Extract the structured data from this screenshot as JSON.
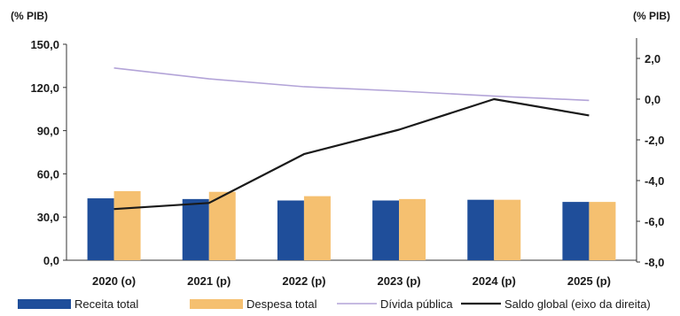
{
  "chart_data": {
    "type": "bar",
    "categories": [
      "2020 (o)",
      "2021 (p)",
      "2022 (p)",
      "2023 (p)",
      "2024 (p)",
      "2025 (p)"
    ],
    "left_axis": {
      "unit": "(% PIB)",
      "ylim": [
        0,
        150
      ],
      "ticks": [
        "0,0",
        "30,0",
        "60,0",
        "90,0",
        "120,0",
        "150,0"
      ],
      "tick_values": [
        0,
        30,
        60,
        90,
        120,
        150
      ]
    },
    "right_axis": {
      "unit": "(% PIB)",
      "ylim": [
        -8,
        3
      ],
      "ticks": [
        "-8,0",
        "-6,0",
        "-4,0",
        "-2,0",
        "0,0",
        "2,0"
      ],
      "tick_values": [
        -8,
        -6,
        -4,
        -2,
        0,
        2
      ]
    },
    "series": [
      {
        "name": "Receita total",
        "kind": "bar",
        "axis": "left",
        "color": "#1f4e9a",
        "values": [
          43,
          42.5,
          41.5,
          41.5,
          42,
          40.5
        ]
      },
      {
        "name": "Despesa total",
        "kind": "bar",
        "axis": "left",
        "color": "#f5c070",
        "values": [
          48,
          47.5,
          44.5,
          42.5,
          42,
          40.5
        ]
      },
      {
        "name": "Dívida pública",
        "kind": "line",
        "axis": "left",
        "color": "#b3a4d8",
        "values": [
          133.5,
          126,
          120.5,
          117.5,
          114,
          111
        ]
      },
      {
        "name": "Saldo global (eixo da direita)",
        "kind": "line",
        "axis": "right",
        "color": "#1a1a1a",
        "values": [
          -5.4,
          -5.1,
          -2.7,
          -1.5,
          0.0,
          -0.8
        ]
      }
    ],
    "legend": "bottom",
    "grid": false
  }
}
